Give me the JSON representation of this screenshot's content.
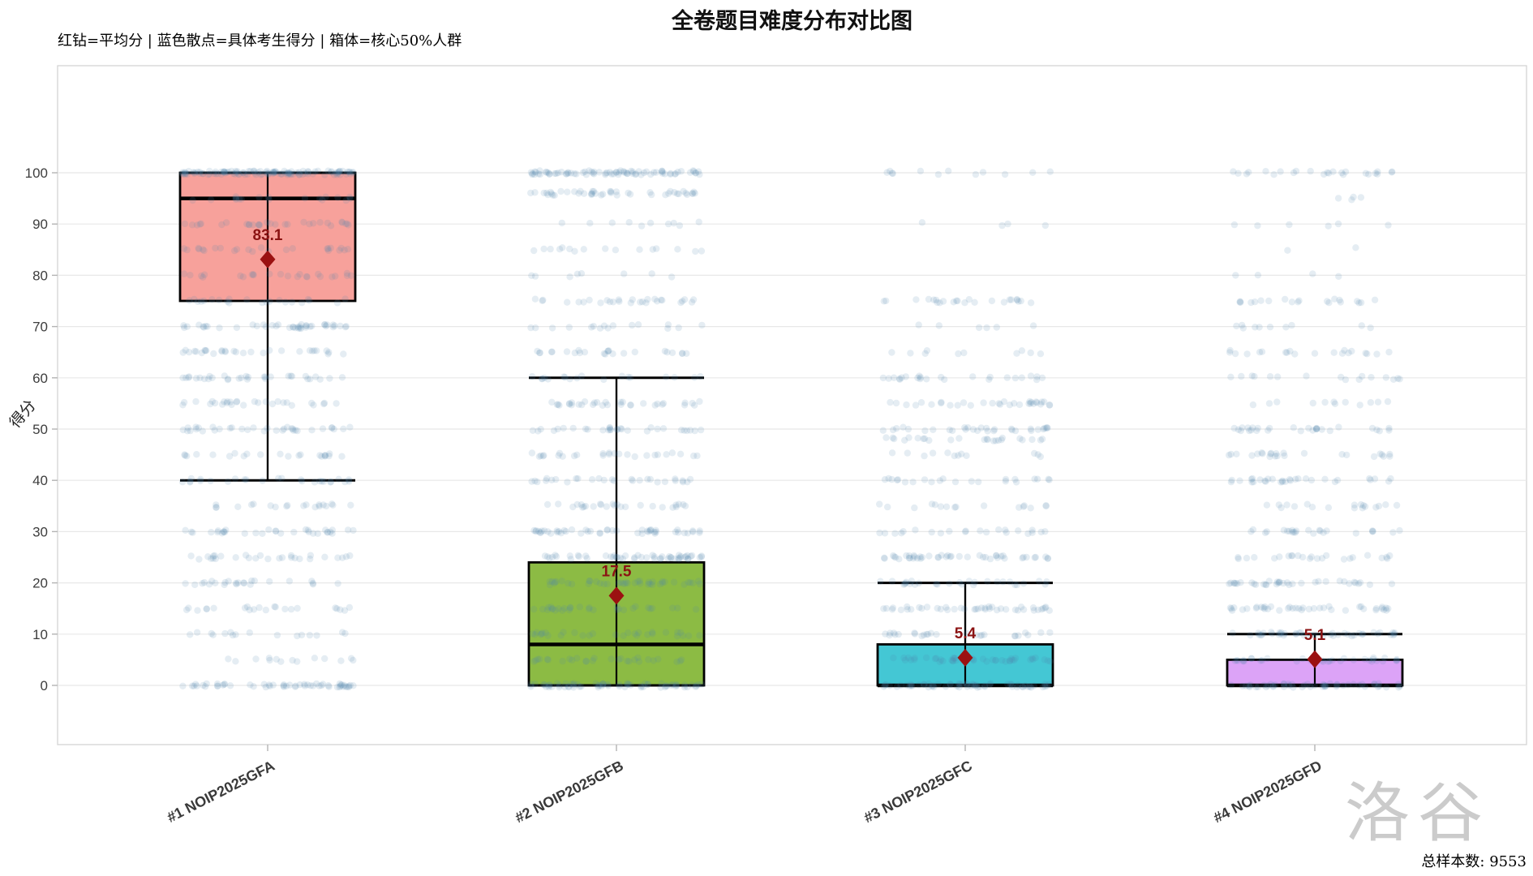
{
  "page": {
    "watermark": "洛谷",
    "footer_label": "总样本数:",
    "footer_value": "9553"
  },
  "chart_data": {
    "type": "boxplot",
    "title": "全卷题目难度分布对比图",
    "legend_note": "红钻=平均分 | 蓝色散点=具体考生得分 | 箱体=核心50%人群",
    "ylabel": "得分",
    "ylim": [
      0,
      100
    ],
    "yticks": [
      0,
      10,
      20,
      30,
      40,
      50,
      60,
      70,
      80,
      90,
      100
    ],
    "grid": "horizontal",
    "legend_position": "top-left-text",
    "total_samples": 9553,
    "scatter_color": "#4E86AD",
    "mean_marker_color": "#9B1111",
    "mean_label_color": "#8B1313",
    "frame_color": "#d4d4d4",
    "gridline_color": "#e8e8e8",
    "series": [
      {
        "label": "#1 NOIP2025GFA",
        "box_color": "#F7A19B",
        "q1": 75,
        "median": 95,
        "q3": 100,
        "whisker_low": 40,
        "whisker_high": 100,
        "mean": 83.1,
        "mean_label": "83.1",
        "scatter_bands": [
          [
            100,
            115
          ],
          [
            95,
            18
          ],
          [
            90,
            30
          ],
          [
            85,
            24
          ],
          [
            80,
            24
          ],
          [
            75,
            22
          ],
          [
            70,
            42
          ],
          [
            65,
            30
          ],
          [
            60,
            32
          ],
          [
            55,
            28
          ],
          [
            50,
            34
          ],
          [
            45,
            22
          ],
          [
            40,
            26
          ],
          [
            35,
            20
          ],
          [
            30,
            32
          ],
          [
            25,
            28
          ],
          [
            20,
            24
          ],
          [
            15,
            22
          ],
          [
            10,
            16
          ],
          [
            5,
            14
          ],
          [
            0,
            55
          ]
        ]
      },
      {
        "label": "#2 NOIP2025GFB",
        "box_color": "#8CBB44",
        "q1": 0,
        "median": 8,
        "q3": 24,
        "whisker_low": 0,
        "whisker_high": 60,
        "mean": 17.5,
        "mean_label": "17.5",
        "scatter_bands": [
          [
            100,
            80
          ],
          [
            96,
            45
          ],
          [
            90,
            10
          ],
          [
            85,
            16
          ],
          [
            80,
            8
          ],
          [
            75,
            28
          ],
          [
            70,
            16
          ],
          [
            65,
            24
          ],
          [
            60,
            18
          ],
          [
            55,
            32
          ],
          [
            50,
            30
          ],
          [
            45,
            26
          ],
          [
            40,
            28
          ],
          [
            35,
            26
          ],
          [
            30,
            48
          ],
          [
            25,
            52
          ],
          [
            20,
            42
          ],
          [
            15,
            30
          ],
          [
            10,
            30
          ],
          [
            5,
            28
          ],
          [
            0,
            65
          ]
        ]
      },
      {
        "label": "#3 NOIP2025GFC",
        "box_color": "#44C7D4",
        "q1": 0,
        "median": 0,
        "q3": 8,
        "whisker_low": 0,
        "whisker_high": 20,
        "mean": 5.4,
        "mean_label": "5.4",
        "scatter_bands": [
          [
            100,
            12
          ],
          [
            90,
            4
          ],
          [
            75,
            24
          ],
          [
            70,
            6
          ],
          [
            65,
            10
          ],
          [
            60,
            24
          ],
          [
            55,
            32
          ],
          [
            50,
            30
          ],
          [
            48,
            24
          ],
          [
            45,
            12
          ],
          [
            40,
            22
          ],
          [
            35,
            16
          ],
          [
            30,
            22
          ],
          [
            25,
            45
          ],
          [
            20,
            28
          ],
          [
            15,
            42
          ],
          [
            10,
            26
          ],
          [
            5,
            45
          ],
          [
            0,
            60
          ]
        ]
      },
      {
        "label": "#4 NOIP2025GFD",
        "box_color": "#DCA3F7",
        "q1": 0,
        "median": 0,
        "q3": 5,
        "whisker_low": 0,
        "whisker_high": 10,
        "mean": 5.1,
        "mean_label": "5.1",
        "scatter_bands": [
          [
            100,
            24
          ],
          [
            95,
            4
          ],
          [
            90,
            6
          ],
          [
            85,
            2
          ],
          [
            80,
            4
          ],
          [
            75,
            20
          ],
          [
            70,
            10
          ],
          [
            65,
            20
          ],
          [
            60,
            16
          ],
          [
            55,
            12
          ],
          [
            50,
            28
          ],
          [
            45,
            24
          ],
          [
            40,
            30
          ],
          [
            35,
            18
          ],
          [
            30,
            24
          ],
          [
            25,
            24
          ],
          [
            20,
            36
          ],
          [
            15,
            40
          ],
          [
            10,
            42
          ],
          [
            5,
            34
          ],
          [
            0,
            52
          ]
        ]
      }
    ]
  }
}
